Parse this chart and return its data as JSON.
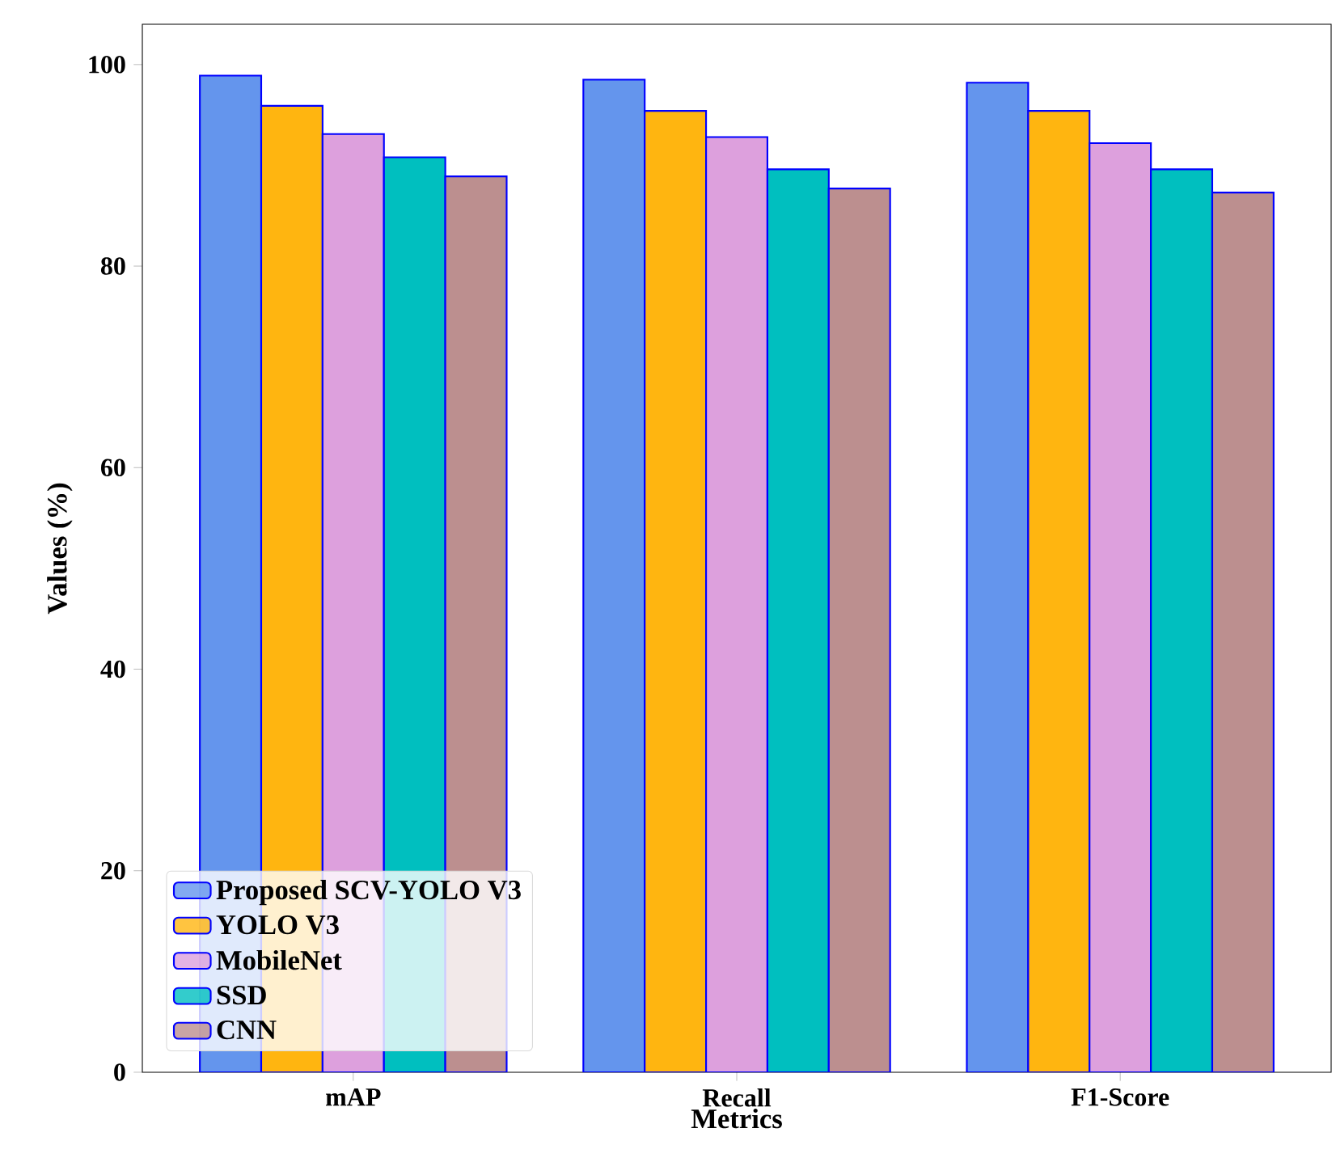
{
  "chart_data": {
    "type": "bar",
    "xlabel": "Metrics",
    "ylabel": "Values (%)",
    "categories": [
      "mAP",
      "Recall",
      "F1-Score"
    ],
    "series": [
      {
        "name": "Proposed SCV-YOLO V3",
        "color": "#6495ed",
        "values": [
          98.9,
          98.5,
          98.2
        ]
      },
      {
        "name": "YOLO V3",
        "color": "#ffb510",
        "values": [
          95.9,
          95.4,
          95.4
        ]
      },
      {
        "name": "MobileNet",
        "color": "#dda0dd",
        "values": [
          93.1,
          92.8,
          92.2
        ]
      },
      {
        "name": "SSD",
        "color": "#00bfbf",
        "values": [
          90.8,
          89.6,
          89.6
        ]
      },
      {
        "name": "CNN",
        "color": "#bc8f8f",
        "values": [
          88.9,
          87.7,
          87.3
        ]
      }
    ],
    "ylim": [
      0,
      104
    ],
    "yticks": [
      0,
      20,
      40,
      60,
      80,
      100
    ],
    "legend": "bottom left",
    "grid": false
  }
}
